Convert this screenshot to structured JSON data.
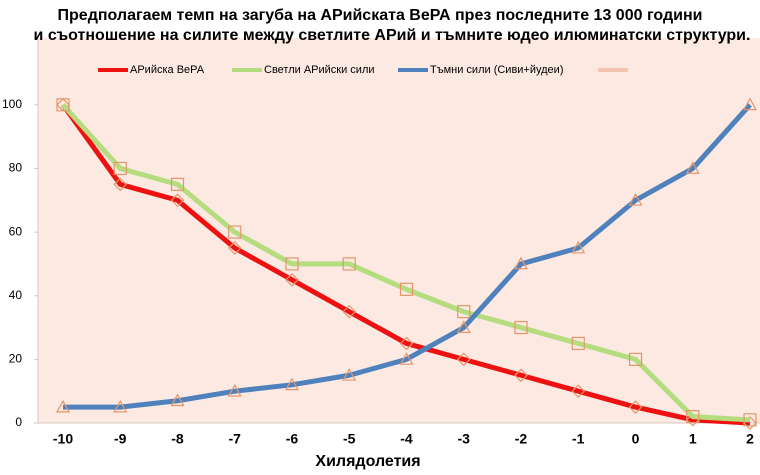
{
  "chart_data": {
    "type": "line",
    "title": [
      "Предполагаем темп на загуба на АРийската ВеРА през последните 13 000 години",
      "и съотношение на силите между светлите АРий и тъмните юдео илюминатски структури."
    ],
    "x_label": "Хилядолетия",
    "categories": [
      "-10",
      "-9",
      "-8",
      "-7",
      "-6",
      "-5",
      "-4",
      "-3",
      "-2",
      "-1",
      "0",
      "1",
      "2"
    ],
    "series": [
      {
        "name": "АРийска ВеРА",
        "color": "#ee1111",
        "marker": "diamond",
        "values": [
          100,
          75,
          70,
          55,
          45,
          35,
          25,
          20,
          15,
          10,
          5,
          1,
          0
        ]
      },
      {
        "name": "Светли АРийски сили",
        "color": "#b5dc7f",
        "marker": "square",
        "values": [
          100,
          80,
          75,
          60,
          50,
          50,
          42,
          35,
          30,
          25,
          20,
          2,
          1
        ]
      },
      {
        "name": "Тъмни сили (Сиви+йудеи)",
        "color": "#4f81bd",
        "marker": "triangle",
        "values": [
          5,
          5,
          7,
          10,
          12,
          15,
          20,
          30,
          50,
          55,
          70,
          80,
          100
        ]
      }
    ],
    "marker_color": "#e6956a",
    "ylim": [
      0,
      121
    ],
    "yticks": [
      0,
      20,
      40,
      60,
      80,
      100
    ],
    "grid": false
  }
}
